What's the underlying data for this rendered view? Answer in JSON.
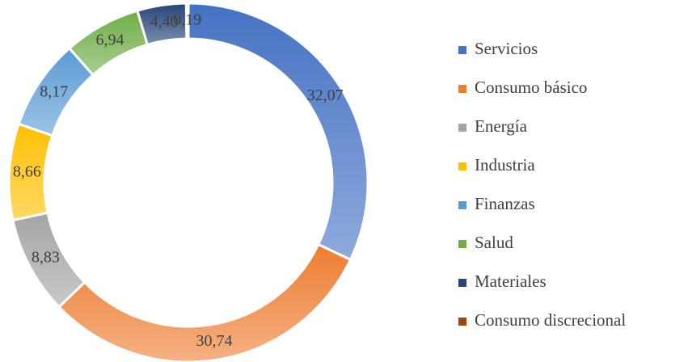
{
  "chart_data": {
    "type": "donut",
    "categories": [
      "Servicios",
      "Consumo básico",
      "Energía",
      "Industria",
      "Finanzas",
      "Salud",
      "Materiales",
      "Consumo discrecional"
    ],
    "values": [
      32.07,
      30.74,
      8.83,
      8.66,
      8.17,
      6.94,
      4.4,
      0.19
    ],
    "value_labels": [
      "32,07",
      "30,74",
      "8,83",
      "8,66",
      "8,17",
      "6,94",
      "4,40",
      "0,19"
    ],
    "colors": [
      "#4472c4",
      "#ed7d31",
      "#a5a5a5",
      "#ffc000",
      "#5b9bd5",
      "#70ad47",
      "#264478",
      "#9e480e"
    ],
    "legend": "right"
  }
}
